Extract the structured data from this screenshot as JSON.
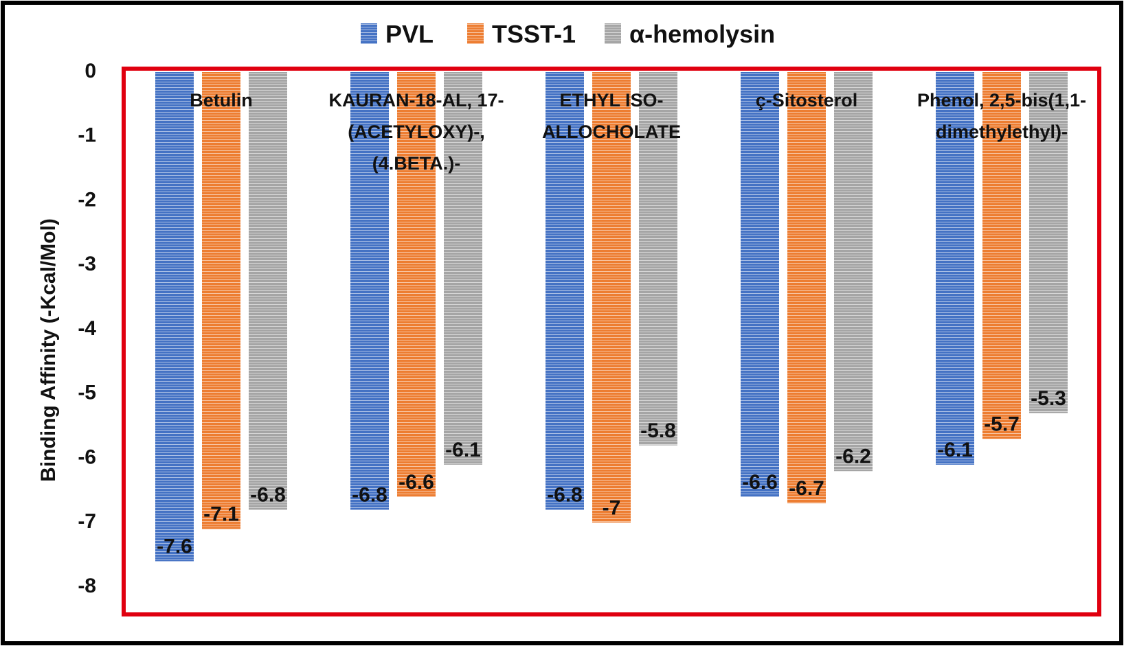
{
  "chart_data": {
    "type": "bar",
    "ylabel": "Binding Affinity (-Kcal/Mol)",
    "ylim": [
      -8,
      0
    ],
    "yticks": [
      "0",
      "-1",
      "-2",
      "-3",
      "-4",
      "-5",
      "-6",
      "-7",
      "-8"
    ],
    "grid": false,
    "legend_position": "top",
    "categories": [
      [
        "Betulin"
      ],
      [
        "KAURAN-18-AL, 17-",
        "(ACETYLOXY)-,",
        "(4.BETA.)-"
      ],
      [
        "ETHYL ISO-",
        "ALLOCHOLATE"
      ],
      [
        "ç-Sitosterol"
      ],
      [
        "Phenol, 2,5-bis(1,1-",
        "dimethylethyl)-"
      ]
    ],
    "series": [
      {
        "name": "PVL",
        "color": "#4472c4",
        "values": [
          -7.6,
          -6.8,
          -6.8,
          -6.6,
          -6.1
        ],
        "labels": [
          "-7.6",
          "-6.8",
          "-6.8",
          "-6.6",
          "-6.1"
        ]
      },
      {
        "name": "TSST-1",
        "color": "#ed7d31",
        "values": [
          -7.1,
          -6.6,
          -7,
          -6.7,
          -5.7
        ],
        "labels": [
          "-7.1",
          "-6.6",
          "-7",
          "-6.7",
          "-5.7"
        ]
      },
      {
        "name": "α-hemolysin",
        "color": "#a5a5a5",
        "values": [
          -6.8,
          -6.1,
          -5.8,
          -6.2,
          -5.3
        ],
        "labels": [
          "-6.8",
          "-6.1",
          "-5.8",
          "-6.2",
          "-5.3"
        ]
      }
    ]
  },
  "colors": {
    "outer_border": "#000000",
    "plot_border": "#e0000f"
  }
}
